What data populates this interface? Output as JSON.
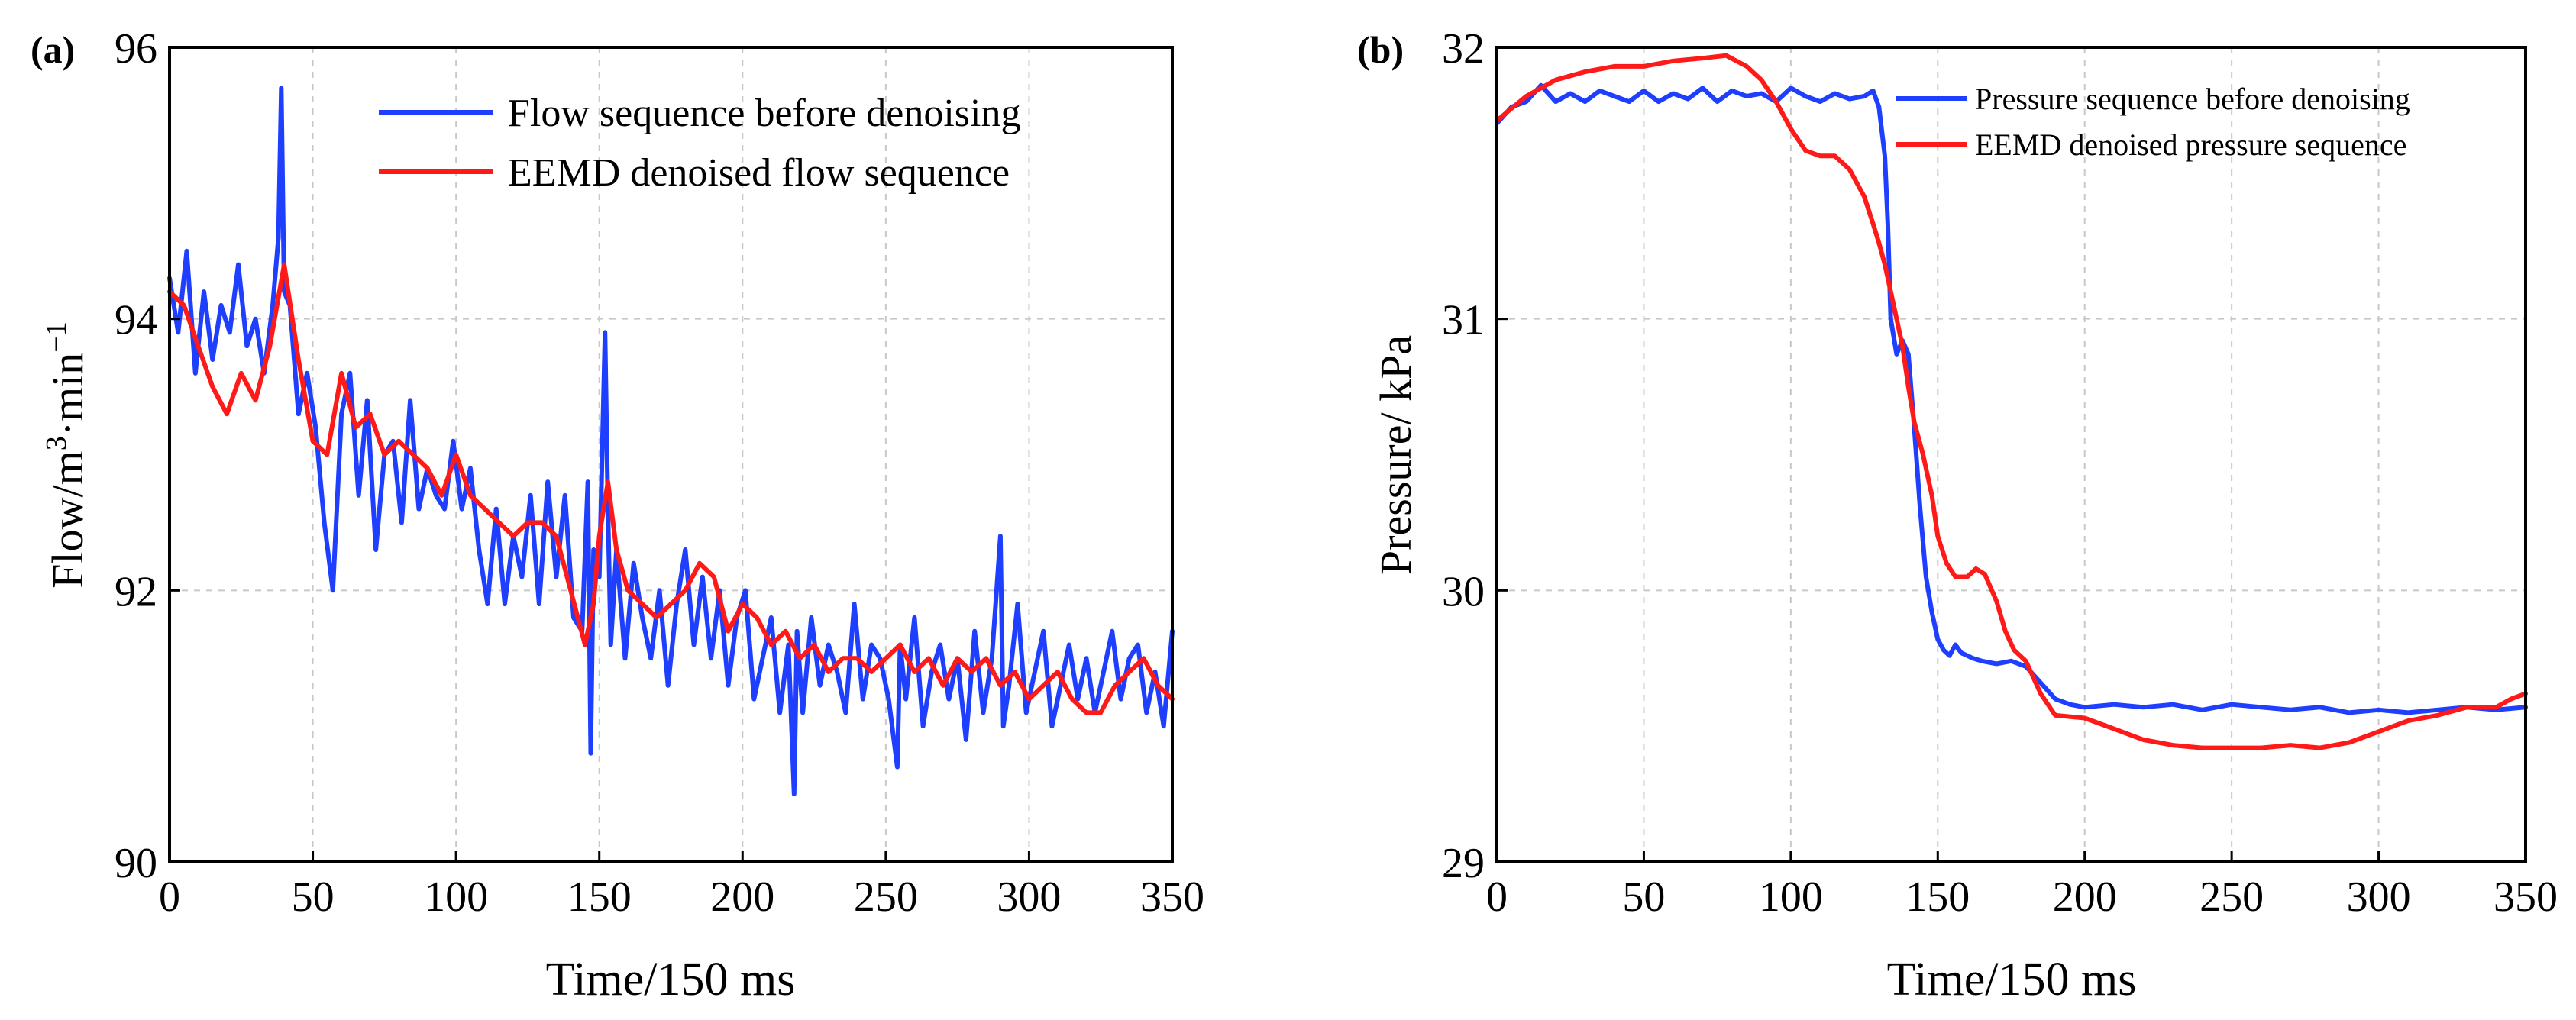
{
  "figure": {
    "panels": [
      {
        "panel_label": "(a)",
        "ylabel": "Flow/m",
        "ylabel_sup1": "3",
        "ylabel_mid": "·min",
        "ylabel_sup2": "−1",
        "xlabel": "Time/150 ms",
        "legend": [
          "Flow sequence before denoising",
          "EEMD denoised flow sequence"
        ],
        "xticks": [
          "0",
          "50",
          "100",
          "150",
          "200",
          "250",
          "300",
          "350"
        ],
        "yticks": [
          "90",
          "92",
          "94",
          "96"
        ]
      },
      {
        "panel_label": "(b)",
        "ylabel": "Pressure/ kPa",
        "xlabel": "Time/150 ms",
        "legend": [
          "Pressure sequence before denoising",
          "EEMD denoised pressure sequence"
        ],
        "xticks": [
          "0",
          "50",
          "100",
          "150",
          "200",
          "250",
          "300",
          "350"
        ],
        "yticks": [
          "29",
          "30",
          "31",
          "32"
        ]
      }
    ]
  },
  "chart_data": [
    {
      "type": "line",
      "xlabel": "Time/150 ms",
      "ylabel": "Flow/m3·min−1",
      "xlim": [
        0,
        350
      ],
      "ylim": [
        90,
        96
      ],
      "grid": true,
      "legend_position": "top-right",
      "series": [
        {
          "name": "Flow sequence before denoising",
          "color": "#1f3fff",
          "x": [
            0,
            3,
            6,
            9,
            12,
            15,
            18,
            21,
            24,
            27,
            30,
            33,
            36,
            38,
            39,
            40,
            42,
            45,
            48,
            51,
            54,
            57,
            60,
            63,
            66,
            69,
            72,
            75,
            78,
            81,
            84,
            87,
            90,
            93,
            96,
            99,
            102,
            105,
            108,
            111,
            114,
            117,
            120,
            123,
            126,
            129,
            132,
            135,
            138,
            141,
            144,
            146,
            147,
            148,
            150,
            152,
            153,
            154,
            156,
            159,
            162,
            165,
            168,
            171,
            174,
            177,
            180,
            183,
            186,
            189,
            192,
            195,
            198,
            201,
            204,
            207,
            210,
            213,
            216,
            218,
            219,
            221,
            224,
            227,
            230,
            233,
            236,
            239,
            242,
            245,
            248,
            251,
            254,
            255,
            257,
            260,
            263,
            266,
            269,
            272,
            275,
            278,
            281,
            284,
            287,
            290,
            291,
            293,
            296,
            299,
            302,
            305,
            308,
            311,
            314,
            317,
            320,
            323,
            326,
            329,
            332,
            335,
            338,
            341,
            344,
            347,
            350
          ],
          "y": [
            94.3,
            93.9,
            94.5,
            93.6,
            94.2,
            93.7,
            94.1,
            93.9,
            94.4,
            93.8,
            94.0,
            93.6,
            94.1,
            94.6,
            95.7,
            94.2,
            94.1,
            93.3,
            93.6,
            93.2,
            92.5,
            92.0,
            93.3,
            93.6,
            92.7,
            93.4,
            92.3,
            93.0,
            93.1,
            92.5,
            93.4,
            92.6,
            92.9,
            92.7,
            92.6,
            93.1,
            92.6,
            92.9,
            92.3,
            91.9,
            92.6,
            91.9,
            92.4,
            92.1,
            92.7,
            91.9,
            92.8,
            92.1,
            92.7,
            91.8,
            91.7,
            92.8,
            90.8,
            92.3,
            92.1,
            93.9,
            92.6,
            91.6,
            92.3,
            91.5,
            92.2,
            91.8,
            91.5,
            92.0,
            91.3,
            91.9,
            92.3,
            91.6,
            92.1,
            91.5,
            92.0,
            91.3,
            91.8,
            92.0,
            91.2,
            91.5,
            91.8,
            91.1,
            91.6,
            90.5,
            91.7,
            91.1,
            91.8,
            91.3,
            91.6,
            91.4,
            91.1,
            91.9,
            91.2,
            91.6,
            91.5,
            91.2,
            90.7,
            91.6,
            91.2,
            91.8,
            91.0,
            91.4,
            91.6,
            91.2,
            91.5,
            90.9,
            91.7,
            91.1,
            91.5,
            92.4,
            91.0,
            91.3,
            91.9,
            91.1,
            91.4,
            91.7,
            91.0,
            91.3,
            91.6,
            91.2,
            91.5,
            91.1,
            91.4,
            91.7,
            91.2,
            91.5,
            91.6,
            91.1,
            91.4,
            91.0,
            91.7
          ]
        },
        {
          "name": "EEMD denoised flow sequence",
          "color": "#ff1a1a",
          "x": [
            0,
            5,
            10,
            15,
            20,
            25,
            30,
            35,
            40,
            45,
            50,
            55,
            60,
            65,
            70,
            75,
            80,
            85,
            90,
            95,
            100,
            105,
            110,
            115,
            120,
            125,
            130,
            135,
            140,
            145,
            148,
            150,
            153,
            156,
            160,
            165,
            170,
            175,
            180,
            185,
            190,
            195,
            200,
            205,
            210,
            215,
            220,
            225,
            230,
            235,
            240,
            245,
            250,
            255,
            260,
            265,
            270,
            275,
            280,
            285,
            290,
            295,
            300,
            305,
            310,
            315,
            320,
            325,
            330,
            335,
            340,
            345,
            350
          ],
          "y": [
            94.2,
            94.1,
            93.8,
            93.5,
            93.3,
            93.6,
            93.4,
            93.8,
            94.4,
            93.7,
            93.1,
            93.0,
            93.6,
            93.2,
            93.3,
            93.0,
            93.1,
            93.0,
            92.9,
            92.7,
            93.0,
            92.7,
            92.6,
            92.5,
            92.4,
            92.5,
            92.5,
            92.4,
            92.0,
            91.6,
            91.9,
            92.4,
            92.8,
            92.3,
            92.0,
            91.9,
            91.8,
            91.9,
            92.0,
            92.2,
            92.1,
            91.7,
            91.9,
            91.8,
            91.6,
            91.7,
            91.5,
            91.6,
            91.4,
            91.5,
            91.5,
            91.4,
            91.5,
            91.6,
            91.4,
            91.5,
            91.3,
            91.5,
            91.4,
            91.5,
            91.3,
            91.4,
            91.2,
            91.3,
            91.4,
            91.2,
            91.1,
            91.1,
            91.3,
            91.4,
            91.5,
            91.3,
            91.2
          ]
        }
      ]
    },
    {
      "type": "line",
      "xlabel": "Time/150 ms",
      "ylabel": "Pressure/ kPa",
      "xlim": [
        0,
        350
      ],
      "ylim": [
        29,
        32
      ],
      "grid": true,
      "legend_position": "top-right",
      "series": [
        {
          "name": "Pressure sequence before denoising",
          "color": "#1f3fff",
          "x": [
            0,
            5,
            10,
            15,
            20,
            25,
            30,
            35,
            40,
            45,
            50,
            55,
            60,
            65,
            70,
            75,
            80,
            85,
            90,
            95,
            100,
            105,
            110,
            115,
            120,
            125,
            128,
            130,
            132,
            133,
            134,
            136,
            138,
            140,
            142,
            144,
            146,
            148,
            150,
            152,
            154,
            156,
            158,
            160,
            162,
            165,
            170,
            175,
            180,
            185,
            190,
            195,
            200,
            210,
            220,
            230,
            240,
            250,
            260,
            270,
            280,
            290,
            300,
            310,
            320,
            330,
            340,
            350
          ],
          "y": [
            31.72,
            31.78,
            31.8,
            31.86,
            31.8,
            31.83,
            31.8,
            31.84,
            31.82,
            31.8,
            31.84,
            31.8,
            31.83,
            31.81,
            31.85,
            31.8,
            31.84,
            31.82,
            31.83,
            31.8,
            31.85,
            31.82,
            31.8,
            31.83,
            31.81,
            31.82,
            31.84,
            31.78,
            31.6,
            31.35,
            31.0,
            30.87,
            30.92,
            30.87,
            30.6,
            30.3,
            30.05,
            29.92,
            29.82,
            29.78,
            29.76,
            29.8,
            29.77,
            29.76,
            29.75,
            29.74,
            29.73,
            29.74,
            29.72,
            29.66,
            29.6,
            29.58,
            29.57,
            29.58,
            29.57,
            29.58,
            29.56,
            29.58,
            29.57,
            29.56,
            29.57,
            29.55,
            29.56,
            29.55,
            29.56,
            29.57,
            29.56,
            29.57
          ]
        },
        {
          "name": "EEMD denoised pressure sequence",
          "color": "#ff1a1a",
          "x": [
            0,
            10,
            20,
            30,
            40,
            50,
            60,
            70,
            78,
            85,
            90,
            95,
            100,
            105,
            110,
            115,
            120,
            125,
            128,
            130,
            132,
            135,
            138,
            140,
            142,
            145,
            148,
            150,
            153,
            156,
            160,
            163,
            166,
            170,
            173,
            176,
            180,
            185,
            190,
            200,
            210,
            220,
            230,
            240,
            250,
            260,
            270,
            280,
            290,
            300,
            310,
            320,
            330,
            340,
            345,
            350
          ],
          "y": [
            31.73,
            31.82,
            31.88,
            31.91,
            31.93,
            31.93,
            31.95,
            31.96,
            31.97,
            31.93,
            31.88,
            31.8,
            31.7,
            31.62,
            31.6,
            31.6,
            31.55,
            31.45,
            31.35,
            31.28,
            31.2,
            31.05,
            30.9,
            30.75,
            30.62,
            30.5,
            30.35,
            30.2,
            30.1,
            30.05,
            30.05,
            30.08,
            30.06,
            29.96,
            29.85,
            29.78,
            29.74,
            29.62,
            29.54,
            29.53,
            29.49,
            29.45,
            29.43,
            29.42,
            29.42,
            29.42,
            29.43,
            29.42,
            29.44,
            29.48,
            29.52,
            29.54,
            29.57,
            29.57,
            29.6,
            29.62
          ]
        }
      ]
    }
  ]
}
